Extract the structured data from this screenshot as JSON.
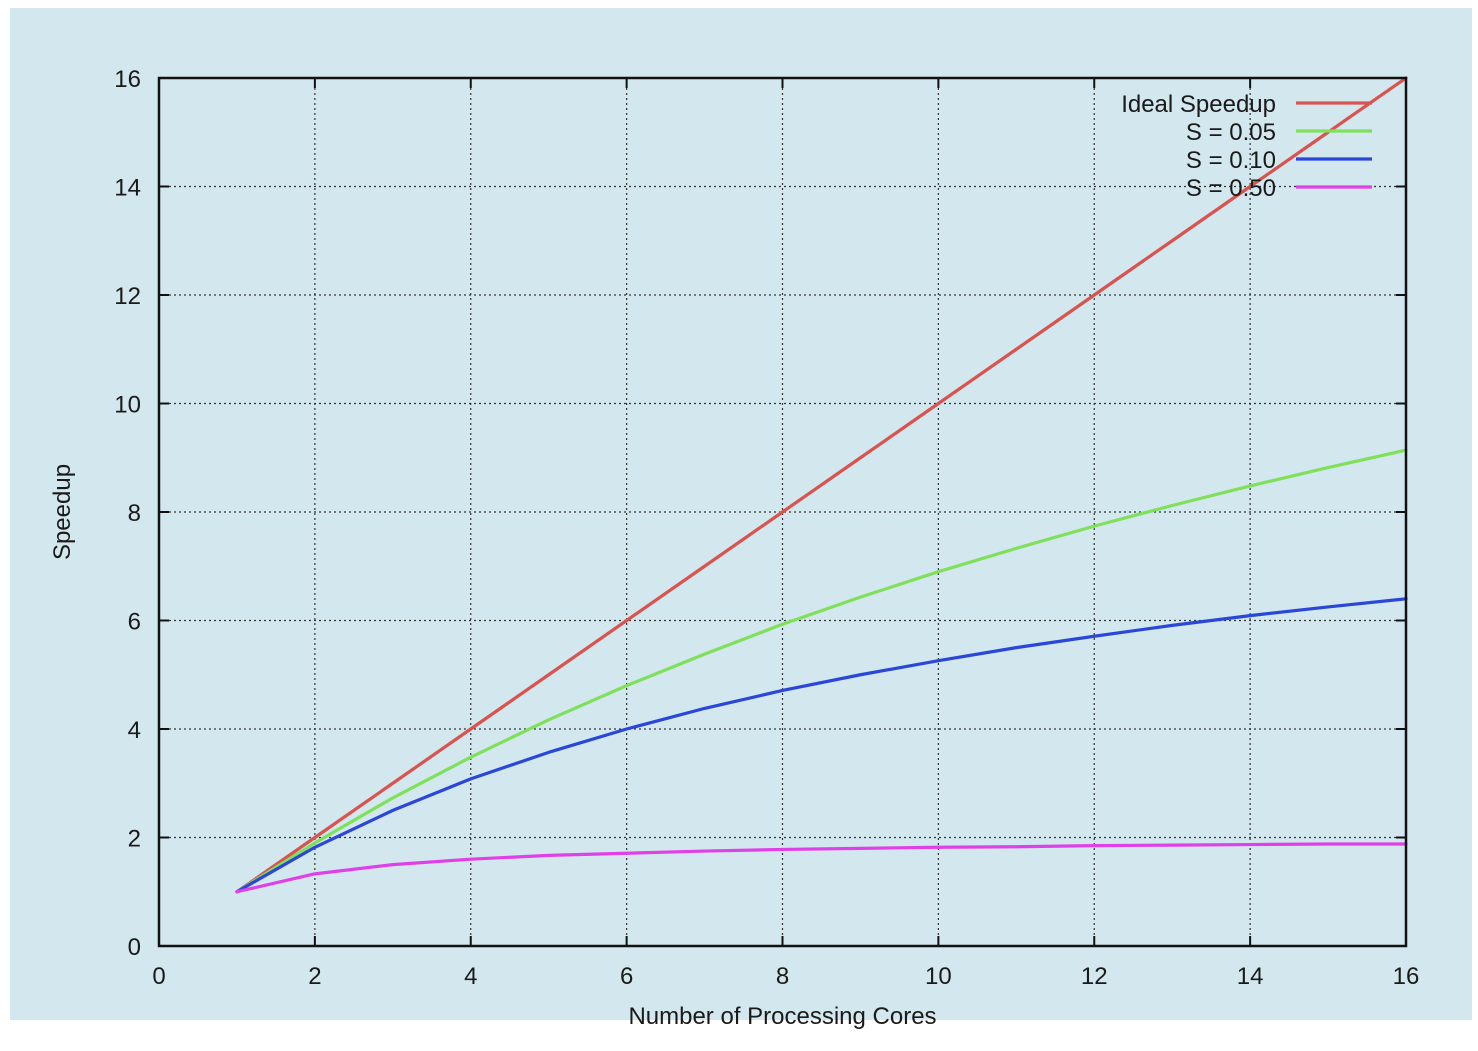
{
  "chart_data": {
    "type": "line",
    "title": "",
    "xlabel": "Number of Processing Cores",
    "ylabel": "Speedup",
    "xlim": [
      0,
      16
    ],
    "ylim": [
      0,
      16
    ],
    "xticks": [
      "0",
      "2",
      "4",
      "6",
      "8",
      "10",
      "12",
      "14",
      "16"
    ],
    "yticks": [
      "0",
      "2",
      "4",
      "6",
      "8",
      "10",
      "12",
      "14",
      "16"
    ],
    "grid": true,
    "legend_position": "top-right",
    "background_color": "#d3e7ef",
    "x": [
      1,
      2,
      3,
      4,
      5,
      6,
      7,
      8,
      9,
      10,
      11,
      12,
      13,
      14,
      15,
      16
    ],
    "series": [
      {
        "name": "Ideal Speedup",
        "color": "#d9534f",
        "values": [
          1,
          2,
          3,
          4,
          5,
          6,
          7,
          8,
          9,
          10,
          11,
          12,
          13,
          14,
          15,
          16
        ]
      },
      {
        "name": "S = 0.05",
        "color": "#7fe05a",
        "values": [
          1.0,
          1.9,
          2.73,
          3.48,
          4.17,
          4.8,
          5.38,
          5.93,
          6.43,
          6.9,
          7.33,
          7.74,
          8.12,
          8.48,
          8.82,
          9.14
        ]
      },
      {
        "name": "S = 0.10",
        "color": "#2a47d8",
        "values": [
          1.0,
          1.82,
          2.5,
          3.08,
          3.57,
          4.0,
          4.38,
          4.71,
          5.0,
          5.26,
          5.5,
          5.71,
          5.91,
          6.09,
          6.25,
          6.4
        ]
      },
      {
        "name": "S = 0.50",
        "color": "#e040e8",
        "values": [
          1.0,
          1.33,
          1.5,
          1.6,
          1.67,
          1.71,
          1.75,
          1.78,
          1.8,
          1.82,
          1.83,
          1.85,
          1.86,
          1.87,
          1.88,
          1.88
        ]
      }
    ]
  }
}
